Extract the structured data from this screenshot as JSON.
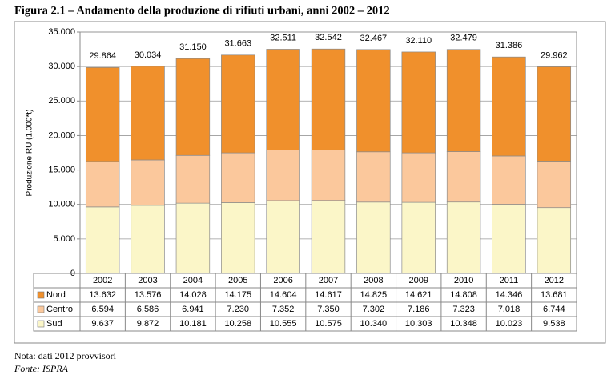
{
  "figure_title": "Figura 2.1 – Andamento della produzione di rifiuti urbani, anni 2002 – 2012",
  "note": "Nota: dati 2012 provvisori",
  "source": "Fonte: ISPRA",
  "chart_data": {
    "type": "stacked_bar",
    "y_label": "Produzione RU (1.000*t)",
    "categories": [
      "2002",
      "2003",
      "2004",
      "2005",
      "2006",
      "2007",
      "2008",
      "2009",
      "2010",
      "2011",
      "2012"
    ],
    "series": [
      {
        "name": "Nord",
        "color": "#f0902c",
        "values": [
          13632,
          13576,
          14028,
          14175,
          14604,
          14617,
          14825,
          14621,
          14808,
          14346,
          13681
        ],
        "value_labels": [
          "13.632",
          "13.576",
          "14.028",
          "14.175",
          "14.604",
          "14.617",
          "14.825",
          "14.621",
          "14.808",
          "14.346",
          "13.681"
        ]
      },
      {
        "name": "Centro",
        "color": "#fbc89c",
        "values": [
          6594,
          6586,
          6941,
          7230,
          7352,
          7350,
          7302,
          7186,
          7323,
          7018,
          6744
        ],
        "value_labels": [
          "6.594",
          "6.586",
          "6.941",
          "7.230",
          "7.352",
          "7.350",
          "7.302",
          "7.186",
          "7.323",
          "7.018",
          "6.744"
        ]
      },
      {
        "name": "Sud",
        "color": "#fbf6c8",
        "values": [
          9637,
          9872,
          10181,
          10258,
          10555,
          10575,
          10340,
          10303,
          10348,
          10023,
          9538
        ],
        "value_labels": [
          "9.637",
          "9.872",
          "10.181",
          "10.258",
          "10.555",
          "10.575",
          "10.340",
          "10.303",
          "10.348",
          "10.023",
          "9.538"
        ]
      }
    ],
    "totals": {
      "values": [
        29864,
        30034,
        31150,
        31663,
        32511,
        32542,
        32467,
        32110,
        32479,
        31386,
        29962
      ],
      "value_labels": [
        "29.864",
        "30.034",
        "31.150",
        "31.663",
        "32.511",
        "32.542",
        "32.467",
        "32.110",
        "32.479",
        "31.386",
        "29.962"
      ]
    },
    "ylim": [
      0,
      35000
    ],
    "yticks": [
      0,
      {
        "value": 5000,
        "label": "5.000"
      },
      {
        "value": 10000,
        "label": "10.000"
      },
      {
        "value": 15000,
        "label": "15.000"
      },
      {
        "value": 20000,
        "label": "20.000"
      },
      {
        "value": 25000,
        "label": "25.000"
      },
      {
        "value": 30000,
        "label": "30.000"
      },
      {
        "value": 35000,
        "label": "35.000"
      }
    ],
    "grid": true
  }
}
